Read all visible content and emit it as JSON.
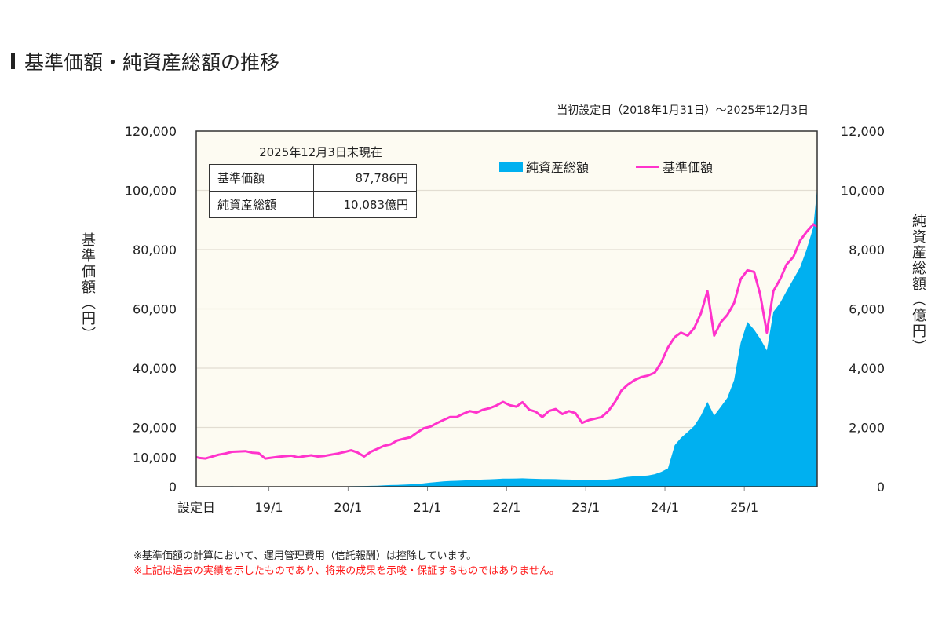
{
  "title": "基準価額・純資産総額の推移",
  "period": "当初設定日（2018年1月31日）～2025年12月3日",
  "infobox": {
    "caption": "2025年12月3日末現在",
    "rows": [
      {
        "label": "基準価額",
        "value": "87,786円"
      },
      {
        "label": "純資産総額",
        "value": "10,083億円"
      }
    ]
  },
  "notes": {
    "note1": "※基準価額の計算において、運用管理費用（信託報酬）は控除しています。",
    "note2": "※上記は過去の実績を示したものであり、将来の成果を示唆・保証するものではありません。"
  },
  "colors": {
    "nav": "#ff33cc",
    "assets": "#00b0f0",
    "plot_bg": "#fdfbf2",
    "note_red": "#ff1a1a"
  },
  "chart_data": {
    "type": "line+area",
    "ylabel_left": "基準価額（円）",
    "ylabel_right": "純資産総額（億円）",
    "ylim_left": [
      0,
      120000
    ],
    "ylim_right": [
      0,
      12000
    ],
    "yticks_left": [
      "0",
      "10,000",
      "20,000",
      "40,000",
      "60,000",
      "80,000",
      "100,000",
      "120,000"
    ],
    "yticks_left_values": [
      0,
      10000,
      20000,
      40000,
      60000,
      80000,
      100000,
      120000
    ],
    "yticks_right": [
      "0",
      "2,000",
      "4,000",
      "6,000",
      "8,000",
      "10,000",
      "12,000"
    ],
    "yticks_right_values": [
      0,
      2000,
      4000,
      6000,
      8000,
      10000,
      12000
    ],
    "xticks": [
      "設定日",
      "19/1",
      "20/1",
      "21/1",
      "22/1",
      "23/1",
      "24/1",
      "25/1"
    ],
    "xticks_dates": [
      "2018-01-31",
      "2019-01-01",
      "2020-01-01",
      "2021-01-01",
      "2022-01-01",
      "2023-01-01",
      "2024-01-01",
      "2025-01-01"
    ],
    "x_range": [
      "2018-01-31",
      "2025-12-03"
    ],
    "grid": true,
    "legend": "top-right",
    "series": [
      {
        "name": "純資産総額",
        "type": "area",
        "axis": "right",
        "values": [
          1,
          2,
          3,
          4,
          5,
          10,
          15,
          8,
          5,
          5,
          5,
          5,
          5,
          5,
          5,
          6,
          6,
          6,
          7,
          7,
          8,
          8,
          9,
          10,
          15,
          20,
          25,
          30,
          35,
          45,
          55,
          60,
          70,
          80,
          90,
          110,
          140,
          160,
          180,
          190,
          200,
          210,
          220,
          230,
          240,
          250,
          260,
          270,
          270,
          275,
          280,
          270,
          265,
          260,
          260,
          255,
          245,
          240,
          235,
          220,
          220,
          225,
          230,
          240,
          260,
          300,
          330,
          350,
          360,
          380,
          420,
          500,
          620,
          1400,
          1650,
          1850,
          2050,
          2400,
          2860,
          2400,
          2700,
          3000,
          3600,
          4850,
          5560,
          5300,
          5000,
          4600,
          5900,
          6200,
          6600,
          7000,
          7400,
          8000,
          8750,
          10083
        ]
      },
      {
        "name": "基準価額",
        "type": "line",
        "axis": "left",
        "values": [
          10000,
          9700,
          9500,
          10200,
          10800,
          11200,
          11800,
          11900,
          12000,
          11500,
          11300,
          9500,
          9800,
          10100,
          10300,
          10500,
          9900,
          10300,
          10600,
          10200,
          10400,
          10800,
          11200,
          11700,
          12300,
          11500,
          10200,
          11800,
          12800,
          13800,
          14300,
          15600,
          16200,
          16700,
          18300,
          19700,
          20300,
          21500,
          22500,
          23500,
          23500,
          24600,
          25500,
          25000,
          26000,
          26500,
          27400,
          28600,
          27500,
          27000,
          28500,
          26000,
          25300,
          23500,
          25500,
          26200,
          24500,
          25500,
          24800,
          21500,
          22500,
          23000,
          23500,
          25500,
          28500,
          32500,
          34500,
          36000,
          37000,
          37500,
          38500,
          42000,
          47000,
          50500,
          52000,
          51000,
          53500,
          58500,
          66000,
          51000,
          55500,
          58000,
          62000,
          70000,
          73000,
          72500,
          65000,
          52000,
          66000,
          70000,
          75000,
          77500,
          83000,
          86000,
          88500,
          87786
        ]
      }
    ],
    "x_start_month": "2018-01",
    "x_step": "month"
  }
}
